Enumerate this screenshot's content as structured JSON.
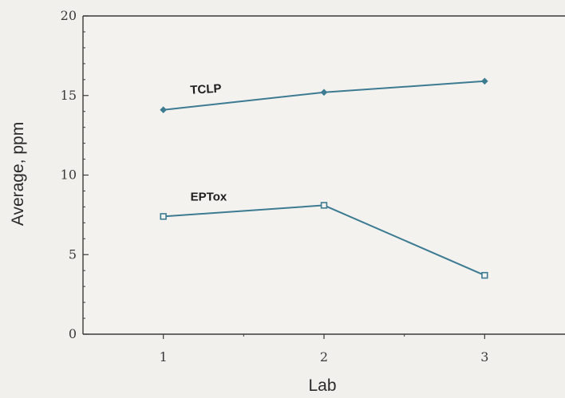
{
  "chart_data": {
    "type": "line",
    "title": "",
    "xlabel": "Lab",
    "ylabel": "Average, ppm",
    "x": [
      1,
      2,
      3
    ],
    "x_tick_labels": [
      "1",
      "2",
      "3"
    ],
    "y_tick_labels": [
      "0",
      "5",
      "10",
      "15",
      "20"
    ],
    "xlim": [
      0.5,
      3.5
    ],
    "ylim": [
      0,
      20
    ],
    "grid": false,
    "legend": "none (series labeled directly on lines)",
    "series": [
      {
        "name": "TCLP",
        "values": [
          14.1,
          15.2,
          15.9
        ],
        "marker": "diamond",
        "color": "#3c7b92"
      },
      {
        "name": "EPTox",
        "values": [
          7.4,
          8.1,
          3.7
        ],
        "marker": "square",
        "color": "#3c7b92"
      }
    ]
  }
}
